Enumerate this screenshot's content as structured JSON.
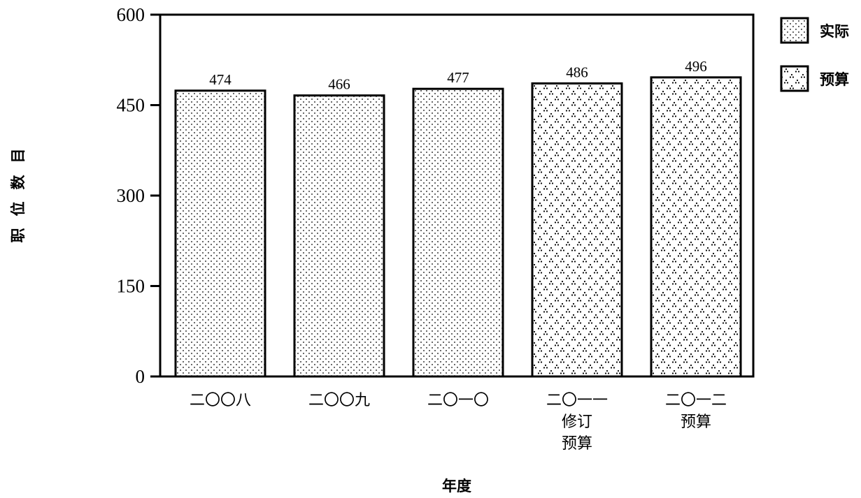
{
  "chart_data": {
    "type": "bar",
    "categories": [
      [
        "二〇〇八"
      ],
      [
        "二〇〇九"
      ],
      [
        "二〇一〇"
      ],
      [
        "二〇一一",
        "修订",
        "预算"
      ],
      [
        "二〇一二",
        "预算"
      ]
    ],
    "values": [
      474,
      466,
      477,
      486,
      496
    ],
    "kinds": [
      "actual",
      "actual",
      "actual",
      "budget",
      "budget"
    ],
    "ylim": [
      0,
      600
    ],
    "yticks": [
      0,
      150,
      300,
      450,
      600
    ],
    "xlabel": "年度",
    "ylabel": "职位数目",
    "grid": false,
    "legend": {
      "position": "top-right",
      "items": [
        {
          "kind": "actual",
          "label": "实际"
        },
        {
          "kind": "budget",
          "label": "预算"
        }
      ]
    }
  }
}
